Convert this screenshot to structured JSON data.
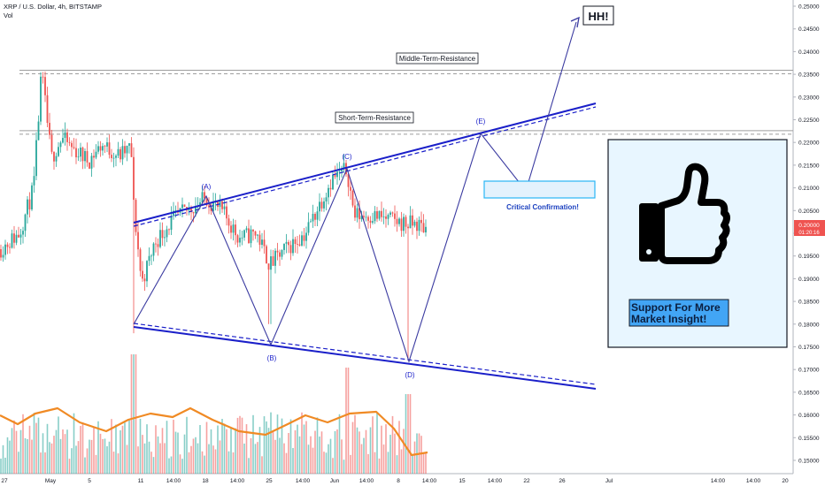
{
  "header": {
    "symbol_line": "XRP / U.S. Dollar, 4h, BITSTAMP",
    "volume_label": "Vol"
  },
  "chart_data": {
    "type": "candlestick",
    "yaxis": {
      "ticks": [
        "0.25000",
        "0.24500",
        "0.24000",
        "0.23500",
        "0.23000",
        "0.22500",
        "0.22000",
        "0.21500",
        "0.21000",
        "0.20500",
        "0.20000",
        "0.19500",
        "0.19000",
        "0.18500",
        "0.18000",
        "0.17500",
        "0.17000",
        "0.16500",
        "0.16000",
        "0.15500",
        "0.15000"
      ],
      "ylim": [
        0.1485,
        0.2515
      ],
      "current_price": "0.20000",
      "countdown": "01:20:16"
    },
    "xaxis": {
      "ticks": [
        "27",
        "May",
        "5",
        "11",
        "14:00",
        "18",
        "14:00",
        "25",
        "14:00",
        "Jun",
        "14:00",
        "8",
        "14:00",
        "15",
        "14:00",
        "22",
        "26",
        "Jul",
        "14:00",
        "14:00",
        "20"
      ]
    },
    "levels": [
      {
        "label": "Middle-Term-Resistance",
        "price": 0.2355
      },
      {
        "label": "Short-Term-Resistance",
        "price": 0.2222
      }
    ],
    "wave_points": [
      {
        "label": "(A)",
        "date": "May 17",
        "price": 0.2078
      },
      {
        "label": "(B)",
        "date": "May 25",
        "price": 0.1753
      },
      {
        "label": "(C)",
        "date": "Jun 3",
        "price": 0.214
      },
      {
        "label": "(D)",
        "date": "Jun 9",
        "price": 0.1714
      },
      {
        "label": "(E)",
        "date": "Jun 17",
        "price": 0.2215
      }
    ],
    "target_label": "HH!",
    "confirmation_label": "Critical Confirmation!",
    "promo_text": "Support For More Market Insight!"
  }
}
